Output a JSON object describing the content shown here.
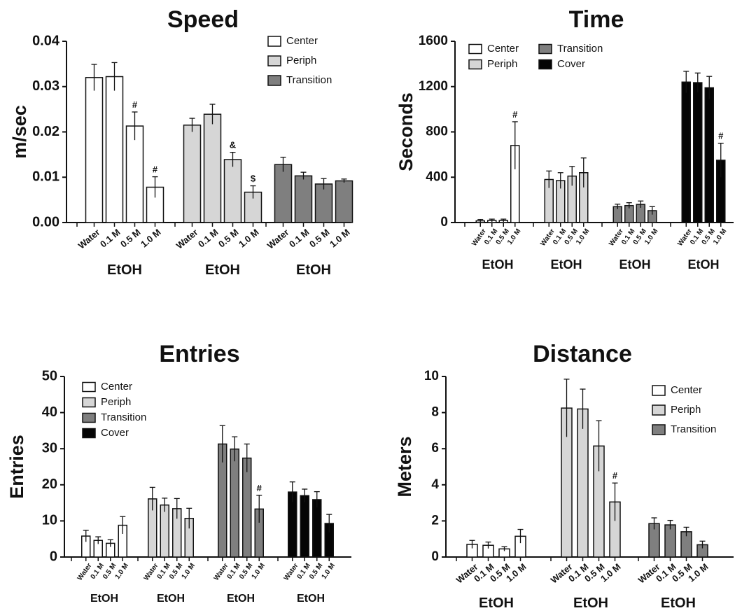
{
  "colors": {
    "Center": "#ffffff",
    "Periph": "#d6d6d6",
    "Transition": "#7f7f7f",
    "Cover": "#050505",
    "axis": "#111111"
  },
  "chart_data": [
    {
      "id": "speed",
      "type": "bar",
      "title": "Speed",
      "xlabel": "",
      "ylabel": "m/sec",
      "ylim": [
        0,
        0.04
      ],
      "yticks": [
        "0.00",
        "0.01",
        "0.02",
        "0.03",
        "0.04"
      ],
      "conditions": [
        "Water",
        "0.1 M",
        "0.5 M",
        "1.0 M"
      ],
      "group_label": "EtOH",
      "legend": [
        "Center",
        "Periph",
        "Transition"
      ],
      "series": [
        {
          "name": "Center",
          "values": [
            0.032,
            0.0322,
            0.0213,
            0.0078
          ],
          "errors": [
            0.0029,
            0.0031,
            0.0031,
            0.0023
          ],
          "annotations": [
            "",
            "",
            "#",
            "#"
          ]
        },
        {
          "name": "Periph",
          "values": [
            0.0215,
            0.0239,
            0.0139,
            0.0067
          ],
          "errors": [
            0.0015,
            0.0022,
            0.0016,
            0.0014
          ],
          "annotations": [
            "",
            "",
            "&",
            "$"
          ]
        },
        {
          "name": "Transition",
          "values": [
            0.0128,
            0.0103,
            0.0085,
            0.0092
          ],
          "errors": [
            0.0016,
            0.0008,
            0.0012,
            0.0004
          ],
          "annotations": [
            "",
            "",
            "",
            ""
          ]
        }
      ]
    },
    {
      "id": "time",
      "type": "bar",
      "title": "Time",
      "xlabel": "",
      "ylabel": "Seconds",
      "ylim": [
        0,
        1600
      ],
      "yticks": [
        "0",
        "400",
        "800",
        "1200",
        "1600"
      ],
      "conditions": [
        "Water",
        "0.1 M",
        "0.5 M",
        "1.0 M"
      ],
      "group_label": "EtOH",
      "legend": [
        "Center",
        "Transition",
        "Periph",
        "Cover"
      ],
      "series": [
        {
          "name": "Center",
          "values": [
            15,
            18,
            18,
            680
          ],
          "errors": [
            12,
            12,
            12,
            210
          ],
          "annotations": [
            "",
            "",
            "",
            "#"
          ]
        },
        {
          "name": "Periph",
          "values": [
            380,
            370,
            410,
            440
          ],
          "errors": [
            75,
            70,
            85,
            130
          ],
          "annotations": [
            "",
            "",
            "",
            ""
          ]
        },
        {
          "name": "Transition",
          "values": [
            140,
            150,
            160,
            105
          ],
          "errors": [
            22,
            25,
            30,
            35
          ],
          "annotations": [
            "",
            "",
            "",
            ""
          ]
        },
        {
          "name": "Cover",
          "values": [
            1240,
            1235,
            1190,
            550
          ],
          "errors": [
            95,
            85,
            100,
            150
          ],
          "annotations": [
            "",
            "",
            "",
            "#"
          ]
        }
      ]
    },
    {
      "id": "entries",
      "type": "bar",
      "title": "Entries",
      "xlabel": "",
      "ylabel": "Entries",
      "ylim": [
        0,
        50
      ],
      "yticks": [
        "0",
        "10",
        "20",
        "30",
        "40",
        "50"
      ],
      "conditions": [
        "Water",
        "0.1 M",
        "0.5 M",
        "1.0 M"
      ],
      "group_label": "EtOH",
      "legend": [
        "Center",
        "Periph",
        "Transition",
        "Cover"
      ],
      "series": [
        {
          "name": "Center",
          "values": [
            5.8,
            4.6,
            3.8,
            8.8
          ],
          "errors": [
            1.6,
            1.0,
            1.0,
            2.4
          ],
          "annotations": [
            "",
            "",
            "",
            ""
          ]
        },
        {
          "name": "Periph",
          "values": [
            16.1,
            14.4,
            13.4,
            10.7
          ],
          "errors": [
            3.2,
            1.9,
            2.8,
            2.8
          ],
          "annotations": [
            "",
            "",
            "",
            ""
          ]
        },
        {
          "name": "Transition",
          "values": [
            31.3,
            29.9,
            27.4,
            13.3
          ],
          "errors": [
            5.1,
            3.4,
            3.9,
            3.8
          ],
          "annotations": [
            "",
            "",
            "",
            "#"
          ]
        },
        {
          "name": "Cover",
          "values": [
            18.0,
            17.0,
            15.9,
            9.3
          ],
          "errors": [
            2.8,
            1.8,
            2.2,
            2.5
          ],
          "annotations": [
            "",
            "",
            "",
            ""
          ]
        }
      ]
    },
    {
      "id": "distance",
      "type": "bar",
      "title": "Distance",
      "xlabel": "",
      "ylabel": "Meters",
      "ylim": [
        0,
        10
      ],
      "yticks": [
        "0",
        "2",
        "4",
        "6",
        "8",
        "10"
      ],
      "conditions": [
        "Water",
        "0.1 M",
        "0.5 M",
        "1.0 M"
      ],
      "group_label": "EtOH",
      "legend": [
        "Center",
        "Periph",
        "Transition"
      ],
      "series": [
        {
          "name": "Center",
          "values": [
            0.7,
            0.65,
            0.45,
            1.15
          ],
          "errors": [
            0.22,
            0.18,
            0.12,
            0.38
          ],
          "annotations": [
            "",
            "",
            "",
            ""
          ]
        },
        {
          "name": "Periph",
          "values": [
            8.25,
            8.2,
            6.15,
            3.05
          ],
          "errors": [
            1.6,
            1.1,
            1.4,
            1.05
          ],
          "annotations": [
            "",
            "",
            "",
            "#"
          ]
        },
        {
          "name": "Transition",
          "values": [
            1.85,
            1.78,
            1.4,
            0.68
          ],
          "errors": [
            0.32,
            0.25,
            0.25,
            0.2
          ],
          "annotations": [
            "",
            "",
            "",
            ""
          ]
        }
      ]
    }
  ]
}
